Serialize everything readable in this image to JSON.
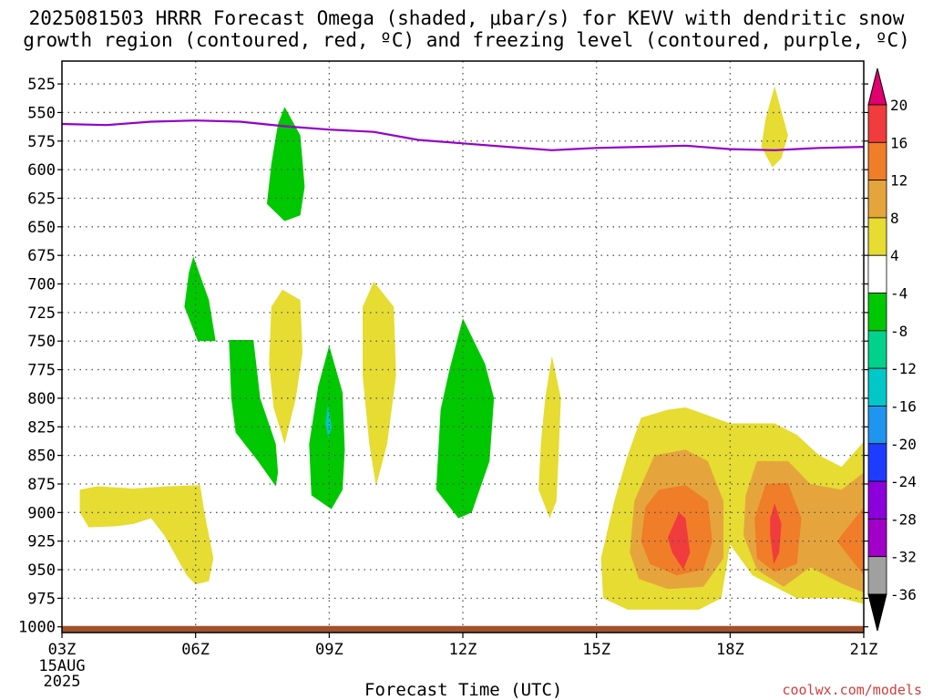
{
  "title": "2025081503 HRRR Forecast Omega (shaded, μbar/s) for KEVV with dendritic snow\ngrowth region (contoured, red, ºC) and freezing level (contoured, purple, ºC)",
  "credit": "coolwx.com/models",
  "chart_data": {
    "type": "area",
    "xlabel": "Forecast Time (UTC)",
    "x_ticks": [
      "03Z",
      "06Z",
      "09Z",
      "12Z",
      "15Z",
      "18Z",
      "21Z"
    ],
    "x_first_tick_sublabels": [
      "15AUG",
      "2025"
    ],
    "x_range_hours": [
      3,
      21
    ],
    "y_axis": "pressure (mb), inverted",
    "y_ticks": [
      525,
      550,
      575,
      600,
      625,
      650,
      675,
      700,
      725,
      750,
      775,
      800,
      825,
      850,
      875,
      900,
      925,
      950,
      975,
      1000
    ],
    "ylim": [
      505,
      1005
    ],
    "grid": true,
    "colorbar": {
      "labels": [
        "20",
        "16",
        "12",
        "8",
        "4",
        "-4",
        "-8",
        "-12",
        "-16",
        "-20",
        "-24",
        "-28",
        "-32",
        "-36"
      ],
      "bins": [
        {
          "from": 20,
          "to": null,
          "color": "#e0006e"
        },
        {
          "from": 16,
          "to": 20,
          "color": "#f03c3c"
        },
        {
          "from": 12,
          "to": 16,
          "color": "#f07d28"
        },
        {
          "from": 8,
          "to": 12,
          "color": "#e6a53c"
        },
        {
          "from": 4,
          "to": 8,
          "color": "#e6dc32"
        },
        {
          "from": -4,
          "to": 4,
          "color": "#ffffff"
        },
        {
          "from": -8,
          "to": -4,
          "color": "#00c800"
        },
        {
          "from": -12,
          "to": -8,
          "color": "#00d28c"
        },
        {
          "from": -16,
          "to": -12,
          "color": "#00c8c8"
        },
        {
          "from": -20,
          "to": -16,
          "color": "#1e96f0"
        },
        {
          "from": -24,
          "to": -20,
          "color": "#1e3cff"
        },
        {
          "from": -28,
          "to": -24,
          "color": "#8c00dc"
        },
        {
          "from": -32,
          "to": -28,
          "color": "#a000c8"
        },
        {
          "from": -36,
          "to": -32,
          "color": "#a0a0a0"
        },
        {
          "from": null,
          "to": -36,
          "color": "#000000"
        }
      ]
    },
    "freezing_level": {
      "color": "#9400c8",
      "points": [
        [
          3.0,
          560
        ],
        [
          4.0,
          561
        ],
        [
          5.0,
          558
        ],
        [
          6.0,
          557
        ],
        [
          7.0,
          558
        ],
        [
          8.0,
          562
        ],
        [
          9.0,
          565
        ],
        [
          10.0,
          567
        ],
        [
          11.0,
          574
        ],
        [
          12.0,
          577
        ],
        [
          13.0,
          580
        ],
        [
          14.0,
          583
        ],
        [
          15.0,
          581
        ],
        [
          16.0,
          580
        ],
        [
          17.0,
          579
        ],
        [
          18.0,
          582
        ],
        [
          19.0,
          583
        ],
        [
          20.0,
          581
        ],
        [
          21.0,
          580
        ]
      ]
    },
    "surface": {
      "color": "#a0522d",
      "pressure": 1002
    },
    "omega_regions": [
      {
        "value": 6,
        "color": "#e6dc32",
        "points": [
          [
            3.4,
            880
          ],
          [
            3.8,
            877
          ],
          [
            4.6,
            879
          ],
          [
            5.4,
            877
          ],
          [
            6.1,
            876
          ],
          [
            6.2,
            900
          ],
          [
            6.4,
            940
          ],
          [
            6.3,
            960
          ],
          [
            6.0,
            963
          ],
          [
            5.8,
            955
          ],
          [
            5.3,
            920
          ],
          [
            5.0,
            905
          ],
          [
            4.6,
            910
          ],
          [
            4.2,
            912
          ],
          [
            3.6,
            913
          ],
          [
            3.4,
            900
          ]
        ]
      },
      {
        "value": -6,
        "color": "#00c800",
        "points": [
          [
            5.95,
            676
          ],
          [
            6.3,
            714
          ],
          [
            6.45,
            750
          ],
          [
            6.05,
            750
          ],
          [
            5.75,
            720
          ],
          [
            5.85,
            690
          ]
        ]
      },
      {
        "value": -6,
        "color": "#00c800",
        "points": [
          [
            6.75,
            749
          ],
          [
            7.3,
            749
          ],
          [
            7.45,
            800
          ],
          [
            7.8,
            840
          ],
          [
            7.85,
            865
          ],
          [
            7.8,
            877
          ],
          [
            7.4,
            855
          ],
          [
            6.9,
            830
          ],
          [
            6.8,
            800
          ]
        ]
      },
      {
        "value": -6,
        "color": "#00c800",
        "points": [
          [
            8.0,
            545
          ],
          [
            8.35,
            570
          ],
          [
            8.45,
            615
          ],
          [
            8.35,
            640
          ],
          [
            8.0,
            645
          ],
          [
            7.6,
            630
          ],
          [
            7.7,
            595
          ],
          [
            7.85,
            560
          ]
        ]
      },
      {
        "value": 6,
        "color": "#e6dc32",
        "points": [
          [
            7.95,
            705
          ],
          [
            8.35,
            714
          ],
          [
            8.4,
            760
          ],
          [
            8.25,
            800
          ],
          [
            8.0,
            840
          ],
          [
            7.75,
            808
          ],
          [
            7.65,
            770
          ],
          [
            7.7,
            720
          ]
        ]
      },
      {
        "value": -6,
        "color": "#00c800",
        "points": [
          [
            9.0,
            754
          ],
          [
            9.3,
            795
          ],
          [
            9.35,
            845
          ],
          [
            9.3,
            880
          ],
          [
            9.05,
            897
          ],
          [
            8.6,
            885
          ],
          [
            8.55,
            840
          ],
          [
            8.75,
            790
          ]
        ]
      },
      {
        "value": -12,
        "color": "#00c8c8",
        "points": [
          [
            8.97,
            805
          ],
          [
            9.05,
            825
          ],
          [
            8.98,
            835
          ],
          [
            8.92,
            822
          ]
        ]
      },
      {
        "value": 6,
        "color": "#e6dc32",
        "points": [
          [
            10.0,
            698
          ],
          [
            10.45,
            720
          ],
          [
            10.5,
            780
          ],
          [
            10.3,
            840
          ],
          [
            10.05,
            877
          ],
          [
            9.9,
            840
          ],
          [
            9.75,
            780
          ],
          [
            9.75,
            720
          ]
        ]
      },
      {
        "value": -6,
        "color": "#00c800",
        "points": [
          [
            12.0,
            730
          ],
          [
            12.5,
            770
          ],
          [
            12.7,
            800
          ],
          [
            12.6,
            855
          ],
          [
            12.2,
            900
          ],
          [
            11.9,
            905
          ],
          [
            11.4,
            880
          ],
          [
            11.5,
            810
          ],
          [
            11.7,
            775
          ]
        ]
      },
      {
        "value": 6,
        "color": "#e6dc32",
        "points": [
          [
            14.0,
            763
          ],
          [
            14.2,
            800
          ],
          [
            14.15,
            850
          ],
          [
            14.1,
            890
          ],
          [
            13.95,
            905
          ],
          [
            13.7,
            880
          ],
          [
            13.75,
            840
          ],
          [
            13.85,
            800
          ]
        ]
      },
      {
        "value": 6,
        "color": "#e6dc32",
        "points": [
          [
            19.0,
            527
          ],
          [
            19.3,
            570
          ],
          [
            19.15,
            590
          ],
          [
            18.95,
            598
          ],
          [
            18.7,
            580
          ],
          [
            18.8,
            555
          ]
        ]
      },
      {
        "value": 6,
        "color": "#e6dc32",
        "points": [
          [
            16.0,
            817
          ],
          [
            16.6,
            810
          ],
          [
            17.0,
            808
          ],
          [
            17.5,
            815
          ],
          [
            18.0,
            822
          ],
          [
            19.0,
            822
          ],
          [
            19.5,
            832
          ],
          [
            20.0,
            850
          ],
          [
            20.5,
            860
          ],
          [
            21.0,
            838
          ],
          [
            21.0,
            980
          ],
          [
            20.5,
            975
          ],
          [
            19.5,
            975
          ],
          [
            19.0,
            965
          ],
          [
            18.5,
            955
          ],
          [
            18.0,
            928
          ],
          [
            17.8,
            975
          ],
          [
            17.3,
            985
          ],
          [
            16.5,
            985
          ],
          [
            15.7,
            985
          ],
          [
            15.15,
            975
          ],
          [
            15.1,
            940
          ],
          [
            15.4,
            890
          ],
          [
            15.7,
            850
          ]
        ]
      },
      {
        "value": 10,
        "color": "#e6a53c",
        "points": [
          [
            16.3,
            850
          ],
          [
            17.0,
            845
          ],
          [
            17.5,
            855
          ],
          [
            17.85,
            890
          ],
          [
            17.85,
            940
          ],
          [
            17.4,
            965
          ],
          [
            16.6,
            967
          ],
          [
            15.95,
            958
          ],
          [
            15.75,
            935
          ],
          [
            15.85,
            890
          ]
        ]
      },
      {
        "value": 10,
        "color": "#e6a53c",
        "points": [
          [
            18.6,
            855
          ],
          [
            19.3,
            855
          ],
          [
            19.8,
            875
          ],
          [
            20.5,
            880
          ],
          [
            21.0,
            865
          ],
          [
            21.0,
            970
          ],
          [
            20.5,
            962
          ],
          [
            19.8,
            948
          ],
          [
            19.2,
            965
          ],
          [
            18.6,
            950
          ],
          [
            18.3,
            920
          ],
          [
            18.35,
            885
          ]
        ]
      },
      {
        "value": 14,
        "color": "#f07d28",
        "points": [
          [
            16.4,
            880
          ],
          [
            17.0,
            876
          ],
          [
            17.5,
            890
          ],
          [
            17.6,
            925
          ],
          [
            17.4,
            950
          ],
          [
            16.8,
            955
          ],
          [
            16.2,
            945
          ],
          [
            16.0,
            925
          ],
          [
            16.1,
            895
          ]
        ]
      },
      {
        "value": 14,
        "color": "#f07d28",
        "points": [
          [
            18.8,
            875
          ],
          [
            19.3,
            874
          ],
          [
            19.6,
            905
          ],
          [
            19.5,
            945
          ],
          [
            19.0,
            952
          ],
          [
            18.6,
            940
          ],
          [
            18.55,
            905
          ]
        ]
      },
      {
        "value": 14,
        "color": "#f07d28",
        "points": [
          [
            20.6,
            915
          ],
          [
            21.0,
            895
          ],
          [
            21.0,
            955
          ],
          [
            20.7,
            940
          ],
          [
            20.4,
            925
          ]
        ]
      },
      {
        "value": 18,
        "color": "#f03c3c",
        "points": [
          [
            16.85,
            900
          ],
          [
            17.0,
            905
          ],
          [
            17.1,
            935
          ],
          [
            16.95,
            950
          ],
          [
            16.7,
            935
          ],
          [
            16.6,
            922
          ]
        ]
      },
      {
        "value": 18,
        "color": "#f03c3c",
        "points": [
          [
            19.0,
            892
          ],
          [
            19.15,
            910
          ],
          [
            19.1,
            935
          ],
          [
            18.98,
            945
          ],
          [
            18.9,
            920
          ],
          [
            18.9,
            905
          ]
        ]
      }
    ]
  }
}
